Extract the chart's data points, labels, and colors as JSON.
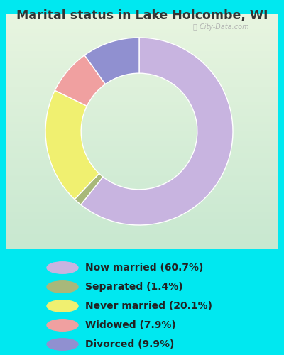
{
  "title": "Marital status in Lake Holcombe, WI",
  "slices": [
    {
      "label": "Now married (60.7%)",
      "value": 60.7,
      "color": "#c8b4e0"
    },
    {
      "label": "Separated (1.4%)",
      "value": 1.4,
      "color": "#a8b87a"
    },
    {
      "label": "Never married (20.1%)",
      "value": 20.1,
      "color": "#f0f070"
    },
    {
      "label": "Widowed (7.9%)",
      "value": 7.9,
      "color": "#f0a0a0"
    },
    {
      "label": "Divorced (9.9%)",
      "value": 9.9,
      "color": "#9090d0"
    }
  ],
  "bg_color": "#00e8f0",
  "chart_bg": "#d8edd8",
  "title_color": "#333333",
  "legend_text_color": "#222222",
  "watermark": "City-Data.com",
  "donut_order": [
    0,
    3,
    2,
    1,
    4
  ],
  "start_angle": 90,
  "donut_width": 0.38
}
